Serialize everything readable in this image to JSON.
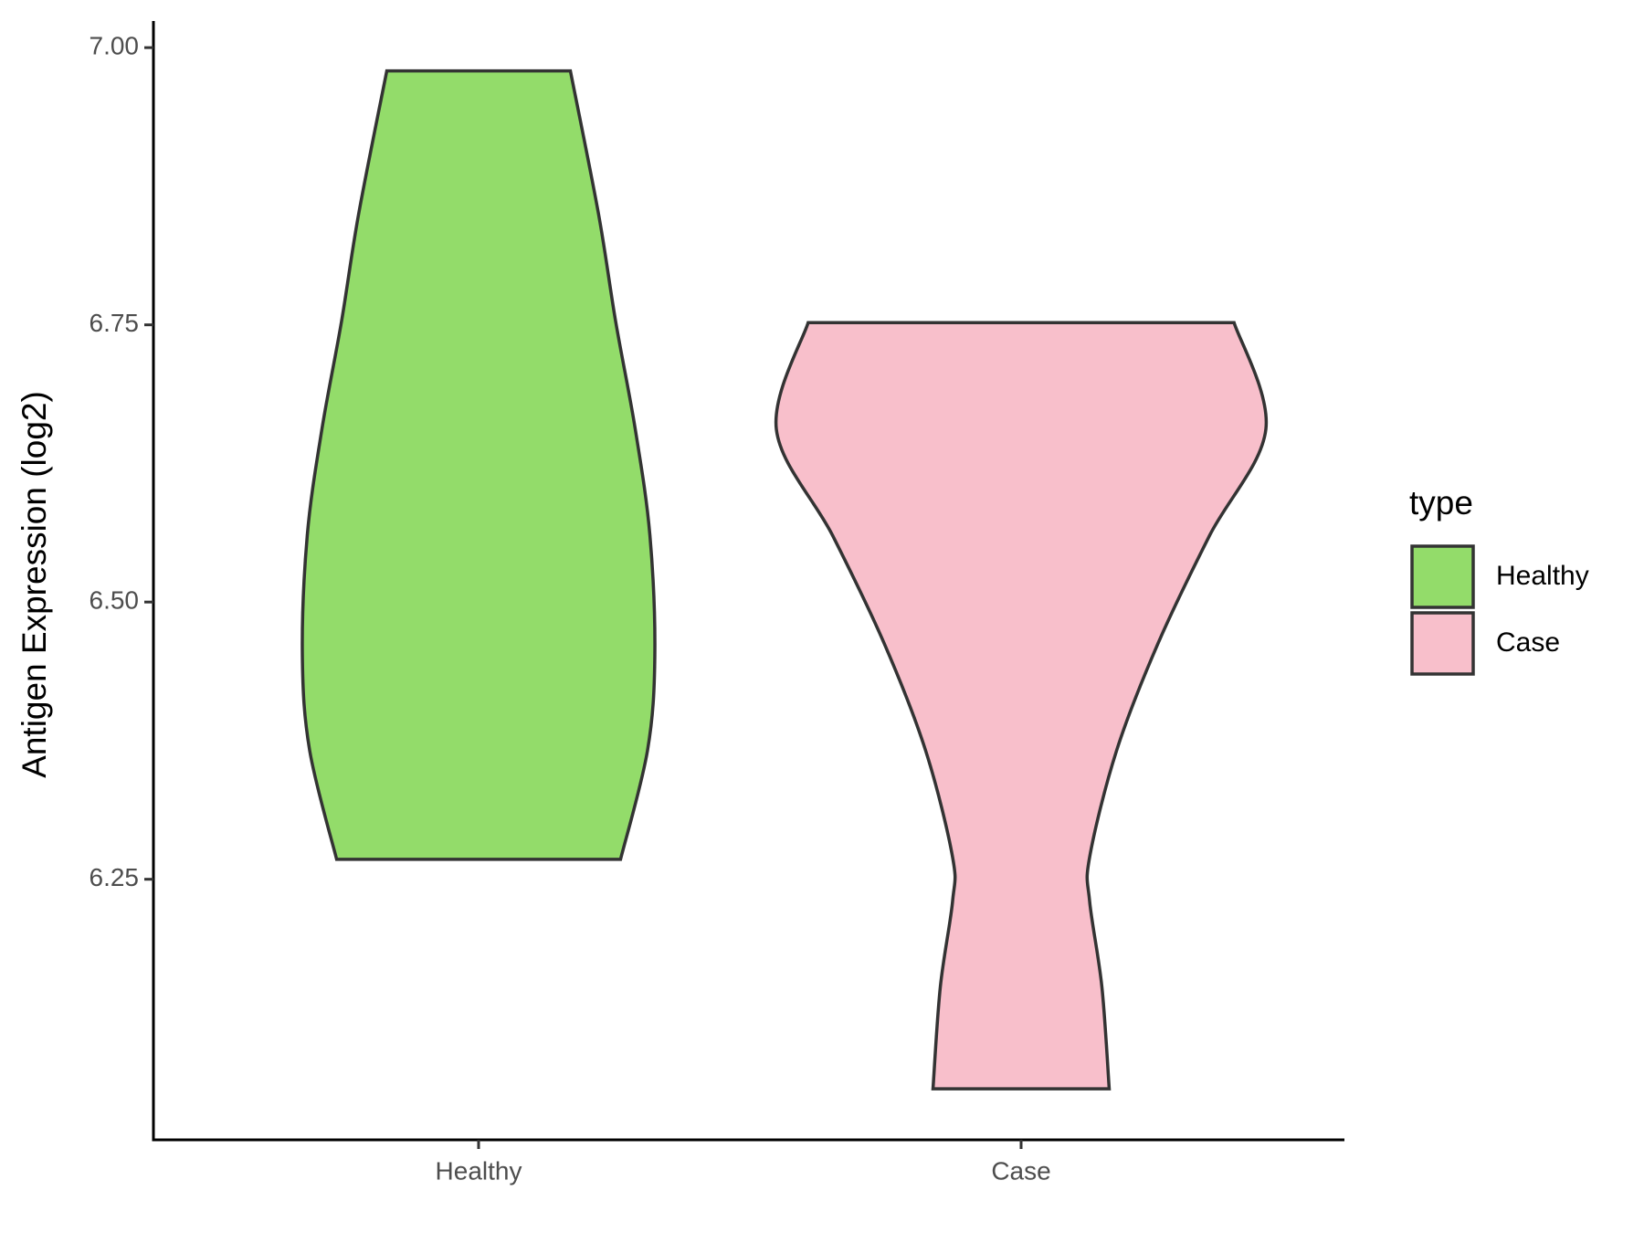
{
  "chart_data": {
    "type": "violin",
    "y_label": "Antigen Expression (log2)",
    "categories": [
      "Healthy",
      "Case"
    ],
    "legend_title": "type",
    "legend": "right",
    "ylim": [
      6.015,
      7.024
    ],
    "yticks": [
      {
        "value": 6.25,
        "label": "6.25"
      },
      {
        "value": 6.5,
        "label": "6.50"
      },
      {
        "value": 6.75,
        "label": "6.75"
      },
      {
        "value": 7,
        "label": "7.00"
      }
    ],
    "series": [
      {
        "name": "Healthy",
        "color": "#93dc6a",
        "y": [
          6.979,
          6.85,
          6.753,
          6.656,
          6.56,
          6.452,
          6.366,
          6.268
        ],
        "density": [
          0.375,
          0.49,
          0.56,
          0.64,
          0.7,
          0.72,
          0.69,
          0.58
        ]
      },
      {
        "name": "Case",
        "color": "#f8bfcb",
        "y": [
          6.752,
          6.656,
          6.56,
          6.463,
          6.366,
          6.27,
          6.23,
          6.153,
          6.061
        ],
        "density": [
          0.87,
          1,
          0.77,
          0.56,
          0.39,
          0.28,
          0.28,
          0.33,
          0.36
        ]
      }
    ]
  }
}
